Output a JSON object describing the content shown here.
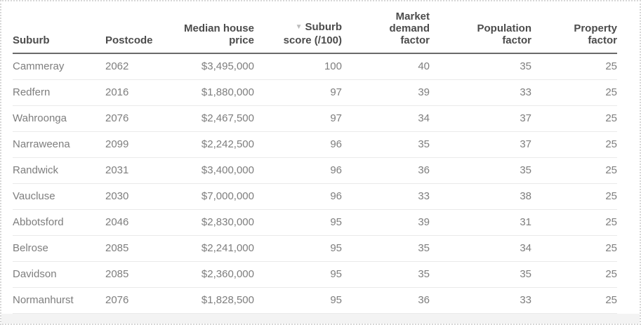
{
  "theme": {
    "card_background": "#ffffff",
    "card_border": "#d7d7d7",
    "header_text": "#4c4c4c",
    "header_underline": "#6a6a6a",
    "body_text": "#7e7e7e",
    "row_divider": "#eaeaea",
    "sort_icon_color": "#bcbcbc",
    "bottom_strip": "#f3f3f3"
  },
  "table": {
    "columns": [
      {
        "key": "suburb",
        "label": "Suburb",
        "align": "left"
      },
      {
        "key": "postcode",
        "label": "Postcode",
        "align": "left"
      },
      {
        "key": "price",
        "label": "Median house\nprice",
        "align": "right"
      },
      {
        "key": "score",
        "label": "Suburb\nscore (/100)",
        "align": "right",
        "sort": "desc",
        "sort_icon": "▼"
      },
      {
        "key": "market",
        "label": "Market\ndemand\nfactor",
        "align": "right"
      },
      {
        "key": "population",
        "label": "Population\nfactor",
        "align": "right"
      },
      {
        "key": "property",
        "label": "Property\nfactor",
        "align": "right"
      }
    ],
    "rows": [
      {
        "suburb": "Cammeray",
        "postcode": "2062",
        "price": "$3,495,000",
        "score": "100",
        "market": "40",
        "population": "35",
        "property": "25"
      },
      {
        "suburb": "Redfern",
        "postcode": "2016",
        "price": "$1,880,000",
        "score": "97",
        "market": "39",
        "population": "33",
        "property": "25"
      },
      {
        "suburb": "Wahroonga",
        "postcode": "2076",
        "price": "$2,467,500",
        "score": "97",
        "market": "34",
        "population": "37",
        "property": "25"
      },
      {
        "suburb": "Narraweena",
        "postcode": "2099",
        "price": "$2,242,500",
        "score": "96",
        "market": "35",
        "population": "37",
        "property": "25"
      },
      {
        "suburb": "Randwick",
        "postcode": "2031",
        "price": "$3,400,000",
        "score": "96",
        "market": "36",
        "population": "35",
        "property": "25"
      },
      {
        "suburb": "Vaucluse",
        "postcode": "2030",
        "price": "$7,000,000",
        "score": "96",
        "market": "33",
        "population": "38",
        "property": "25"
      },
      {
        "suburb": "Abbotsford",
        "postcode": "2046",
        "price": "$2,830,000",
        "score": "95",
        "market": "39",
        "population": "31",
        "property": "25"
      },
      {
        "suburb": "Belrose",
        "postcode": "2085",
        "price": "$2,241,000",
        "score": "95",
        "market": "35",
        "population": "34",
        "property": "25"
      },
      {
        "suburb": "Davidson",
        "postcode": "2085",
        "price": "$2,360,000",
        "score": "95",
        "market": "35",
        "population": "35",
        "property": "25"
      },
      {
        "suburb": "Normanhurst",
        "postcode": "2076",
        "price": "$1,828,500",
        "score": "95",
        "market": "36",
        "population": "33",
        "property": "25"
      }
    ]
  }
}
